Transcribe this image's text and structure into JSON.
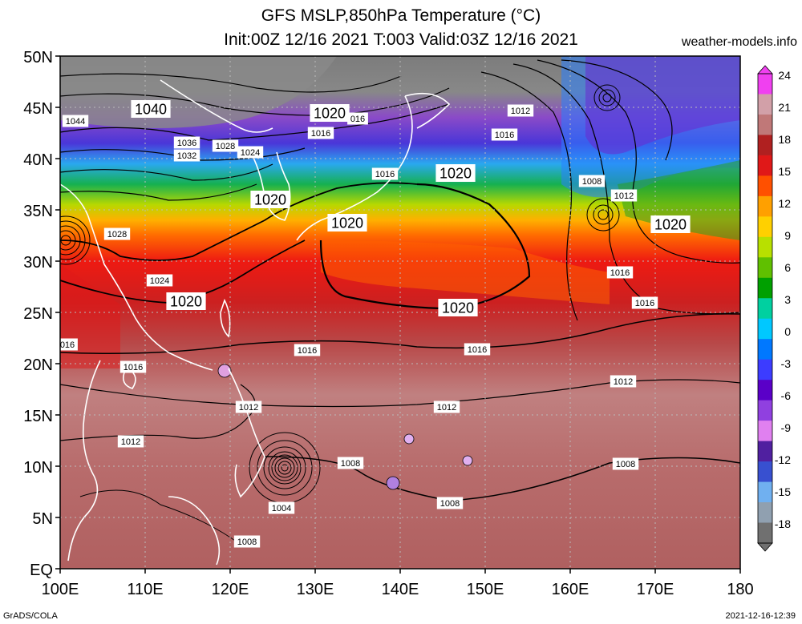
{
  "title_line1": "GFS MSLP,850hPa Temperature (°C)",
  "title_line2": "Init:00Z 12/16 2021 T:003 Valid:03Z 12/16 2021",
  "source": "weather-models.info",
  "footer_left": "GrADS/COLA",
  "footer_right": "2021-12-16-12:39",
  "lat_ticks": [
    "50N",
    "45N",
    "40N",
    "35N",
    "30N",
    "25N",
    "20N",
    "15N",
    "10N",
    "5N",
    "EQ"
  ],
  "lon_ticks": [
    "100E",
    "110E",
    "120E",
    "130E",
    "140E",
    "150E",
    "160E",
    "170E",
    "180"
  ],
  "colorbar": {
    "labels": [
      "24",
      "21",
      "18",
      "15",
      "12",
      "9",
      "6",
      "3",
      "0",
      "-3",
      "-6",
      "-9",
      "-12",
      "-15",
      "-18"
    ],
    "colors": [
      "#f040f0",
      "#d2a0a8",
      "#c07878",
      "#b02020",
      "#e01818",
      "#ff5000",
      "#ffa000",
      "#ffd000",
      "#b8e000",
      "#60c000",
      "#00a000",
      "#00d0a0",
      "#00c8ff",
      "#0078ff",
      "#3c3cff",
      "#5a00c8",
      "#9040e0",
      "#e080f0",
      "#5020a0",
      "#3850d0",
      "#70b0f0",
      "#90a0b0",
      "#707070"
    ]
  },
  "isobar_labels": [
    {
      "text": "1040",
      "size": "big"
    },
    {
      "text": "1044",
      "size": "small"
    },
    {
      "text": "1036",
      "size": "small"
    },
    {
      "text": "1032",
      "size": "small"
    },
    {
      "text": "1028",
      "size": "small"
    },
    {
      "text": "1024",
      "size": "small"
    },
    {
      "text": "1020",
      "size": "big"
    },
    {
      "text": "016",
      "size": "small"
    },
    {
      "text": "1016",
      "size": "small"
    },
    {
      "text": "1012",
      "size": "small"
    },
    {
      "text": "1016",
      "size": "small"
    },
    {
      "text": "1016",
      "size": "small"
    },
    {
      "text": "1020",
      "size": "big"
    },
    {
      "text": "1008",
      "size": "small"
    },
    {
      "text": "1012",
      "size": "small"
    },
    {
      "text": "1020",
      "size": "big"
    },
    {
      "text": "1020",
      "size": "big"
    },
    {
      "text": "1020",
      "size": "big"
    },
    {
      "text": "1028",
      "size": "small"
    },
    {
      "text": "1024",
      "size": "small"
    },
    {
      "text": "1020",
      "size": "big"
    },
    {
      "text": "1016",
      "size": "small"
    },
    {
      "text": "1016",
      "size": "small"
    },
    {
      "text": "1020",
      "size": "big"
    },
    {
      "text": "016",
      "size": "small"
    },
    {
      "text": "1016",
      "size": "small"
    },
    {
      "text": "1016",
      "size": "small"
    },
    {
      "text": "1016",
      "size": "small"
    },
    {
      "text": "1012",
      "size": "small"
    },
    {
      "text": "1012",
      "size": "small"
    },
    {
      "text": "1012",
      "size": "small"
    },
    {
      "text": "1012",
      "size": "small"
    },
    {
      "text": "1008",
      "size": "small"
    },
    {
      "text": "1008",
      "size": "small"
    },
    {
      "text": "1008",
      "size": "small"
    },
    {
      "text": "1004",
      "size": "small"
    },
    {
      "text": "1008",
      "size": "small"
    }
  ]
}
